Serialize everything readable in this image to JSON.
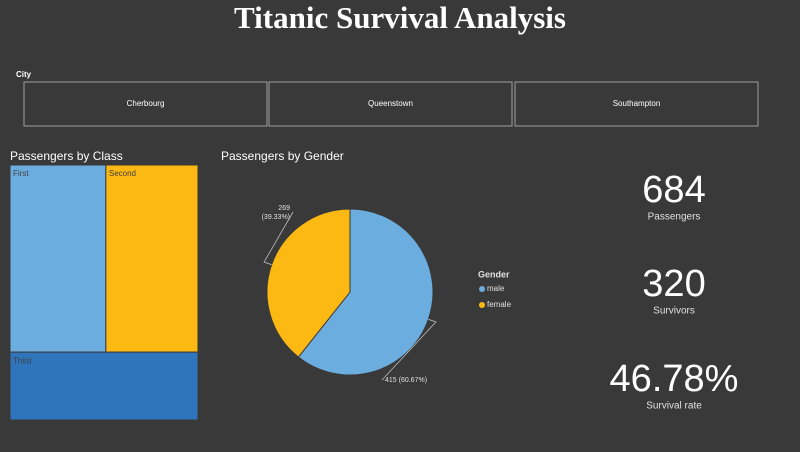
{
  "header": {
    "title": "Titanic Survival Analysis"
  },
  "slicer": {
    "label": "City",
    "options": [
      "Cherbourg",
      "Queenstown",
      "Southampton"
    ]
  },
  "class_treemap": {
    "type": "treemap",
    "title": "Passengers by Class",
    "categories": [
      "First",
      "Second",
      "Third"
    ],
    "values": [
      256,
      246,
      182
    ],
    "colors": [
      "#6cade0",
      "#fdb913",
      "#2f75bb"
    ]
  },
  "gender_pie": {
    "type": "pie",
    "title": "Passengers by Gender",
    "legend_title": "Gender",
    "categories": [
      "male",
      "female"
    ],
    "values": [
      415,
      269
    ],
    "value_labels": [
      "415 (60.67%)",
      "269 (39.33%)"
    ],
    "colors": [
      "#6cade0",
      "#fdb913"
    ]
  },
  "kpis": [
    {
      "value": "684",
      "label": "Passengers"
    },
    {
      "value": "320",
      "label": "Survivors"
    },
    {
      "value": "46.78%",
      "label": "Survival rate"
    }
  ]
}
